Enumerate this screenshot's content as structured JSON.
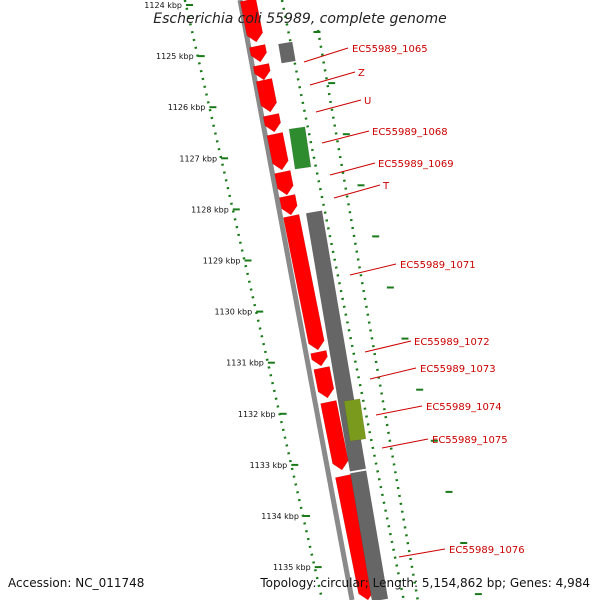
{
  "title": "Escherichia coli 55989, complete genome",
  "footer": {
    "accession": "Accession: NC_011748",
    "topology": "Topology: circular; Length: 5,154,862 bp; Genes: 4,984"
  },
  "colors": {
    "cds": "#ff0000",
    "cds_dark": "#d40000",
    "gray_feature": "#666666",
    "green_feature": "#2e8b2e",
    "olive_feature": "#7a9a1e",
    "backbone": "#8a8a8a",
    "tick_green": "#1a7a1a",
    "label_red": "#cc0000"
  },
  "ticks": [
    {
      "label": "1124 kbp"
    },
    {
      "label": "1125 kbp"
    },
    {
      "label": "1126 kbp"
    },
    {
      "label": "1127 kbp"
    },
    {
      "label": "1128 kbp"
    },
    {
      "label": "1129 kbp"
    },
    {
      "label": "1130 kbp"
    },
    {
      "label": "1131 kbp"
    },
    {
      "label": "1132 kbp"
    },
    {
      "label": "1133 kbp"
    },
    {
      "label": "1134 kbp"
    },
    {
      "label": "1135 kbp"
    }
  ],
  "gene_labels": [
    {
      "text": "EC55989_1065"
    },
    {
      "text": "Z"
    },
    {
      "text": "U"
    },
    {
      "text": "EC55989_1068"
    },
    {
      "text": "EC55989_1069"
    },
    {
      "text": "T"
    },
    {
      "text": "EC55989_1071"
    },
    {
      "text": "EC55989_1072"
    },
    {
      "text": "EC55989_1073"
    },
    {
      "text": "EC55989_1074"
    },
    {
      "text": "EC55989_1075"
    },
    {
      "text": "EC55989_1076"
    }
  ]
}
